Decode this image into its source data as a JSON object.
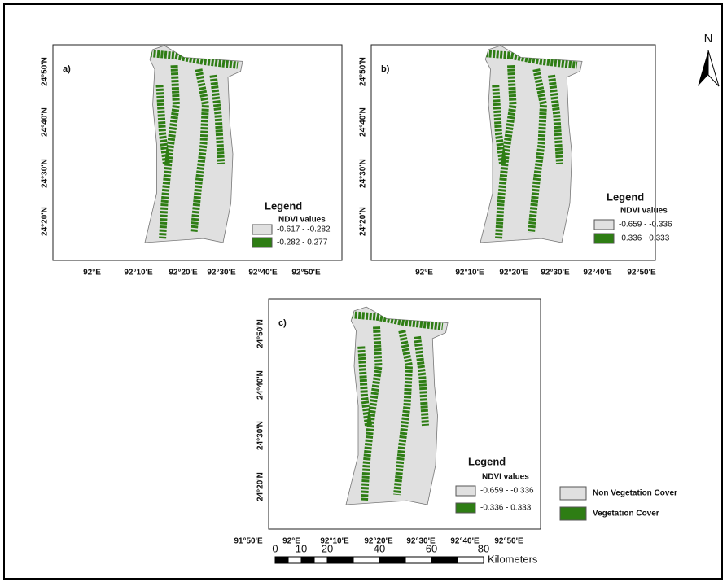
{
  "panels": [
    {
      "label": "a)",
      "lat_labels": [
        "24°50'N",
        "24°40'N",
        "24°30'N",
        "24°20'N"
      ],
      "lon_labels": [
        "92°E",
        "92°10'E",
        "92°20'E",
        "92°30'E",
        "92°40'E",
        "92°50'E"
      ],
      "legend": {
        "title": "Legend",
        "subtitle": "NDVI values",
        "items": [
          {
            "label": "-0.617 - -0.282",
            "color": "#e0e0e0"
          },
          {
            "label": "-0.282 - 0.277",
            "color": "#2e7d14"
          }
        ]
      }
    },
    {
      "label": "b)",
      "lat_labels": [
        "24°50'N",
        "24°40'N",
        "24°30'N",
        "24°20'N"
      ],
      "lon_labels": [
        "92°E",
        "92°10'E",
        "92°20'E",
        "92°30'E",
        "92°40'E",
        "92°50'E"
      ],
      "legend": {
        "title": "Legend",
        "subtitle": "NDVI values",
        "items": [
          {
            "label": "-0.659 - -0.336",
            "color": "#e0e0e0"
          },
          {
            "label": "-0.336 - 0.333",
            "color": "#2e7d14"
          }
        ]
      }
    },
    {
      "label": "c)",
      "lat_labels": [
        "24°50'N",
        "24°40'N",
        "24°30'N",
        "24°20'N"
      ],
      "lon_labels": [
        "91°50'E",
        "92°E",
        "92°10'E",
        "92°20'E",
        "92°30'E",
        "92°40'E",
        "92°50'E"
      ],
      "legend": {
        "title": "Legend",
        "subtitle": "NDVI values",
        "items": [
          {
            "label": "-0.659 - -0.336",
            "color": "#e0e0e0"
          },
          {
            "label": "-0.336 - 0.333",
            "color": "#2e7d14"
          }
        ]
      }
    }
  ],
  "north_label": "N",
  "scale_bar": {
    "ticks": [
      0,
      10,
      20,
      40,
      60,
      80
    ],
    "unit": "Kilometers"
  },
  "class_legend": [
    {
      "label": "Non Vegetation Cover",
      "color": "#e0e0e0"
    },
    {
      "label": "Vegetation Cover",
      "color": "#2e7d14"
    }
  ]
}
